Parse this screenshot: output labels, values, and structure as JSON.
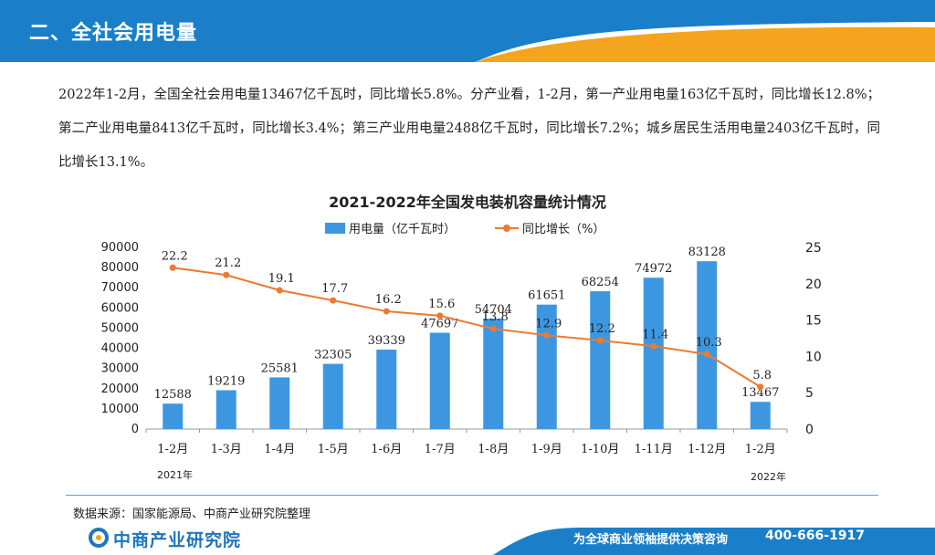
{
  "header": {
    "title": "二、全社会用电量"
  },
  "paragraph": "2022年1-2月，全国全社会用电量13467亿千瓦时，同比增长5.8%。分产业看，1-2月，第一产业用电量163亿千瓦时，同比增长12.8%；第二产业用电量8413亿千瓦时，同比增长3.4%；第三产业用电量2488亿千瓦时，同比增长7.2%；城乡居民生活用电量2403亿千瓦时，同比增长13.1%。",
  "chart_data": {
    "type": "bar",
    "title": "2021-2022年全国发电装机容量统计情况",
    "categories": [
      "1-2月",
      "1-3月",
      "1-4月",
      "1-5月",
      "1-6月",
      "1-7月",
      "1-8月",
      "1-9月",
      "1-10月",
      "1-11月",
      "1-12月",
      "1-2月"
    ],
    "series": [
      {
        "name": "用电量（亿千瓦时）",
        "type": "bar",
        "axis": "left",
        "color": "#3d97e0",
        "values": [
          12588,
          19219,
          25581,
          32305,
          39339,
          47697,
          54704,
          61651,
          68254,
          74972,
          83128,
          13467
        ]
      },
      {
        "name": "同比增长（%）",
        "type": "line",
        "axis": "right",
        "color": "#ec7a30",
        "values": [
          22.2,
          21.2,
          19.1,
          17.7,
          16.2,
          15.6,
          13.8,
          12.9,
          12.2,
          11.4,
          10.3,
          5.8
        ]
      }
    ],
    "y_left": {
      "min": 0,
      "max": 90000,
      "ticks": [
        0,
        10000,
        20000,
        30000,
        40000,
        50000,
        60000,
        70000,
        80000,
        90000
      ]
    },
    "y_right": {
      "min": 0,
      "max": 25,
      "ticks": [
        0,
        5,
        10,
        15,
        20,
        25
      ]
    },
    "year_labels": [
      "2021年",
      "2022年"
    ],
    "legend_position": "top"
  },
  "source": "数据来源：国家能源局、中商产业研究院整理",
  "footer": {
    "logo_text": "中商产业研究院",
    "slogan": "为全球商业领袖提供决策咨询",
    "phone": "400-666-1917"
  },
  "colors": {
    "accent_blue": "#1f75bc",
    "accent_orange": "#f5a623"
  }
}
